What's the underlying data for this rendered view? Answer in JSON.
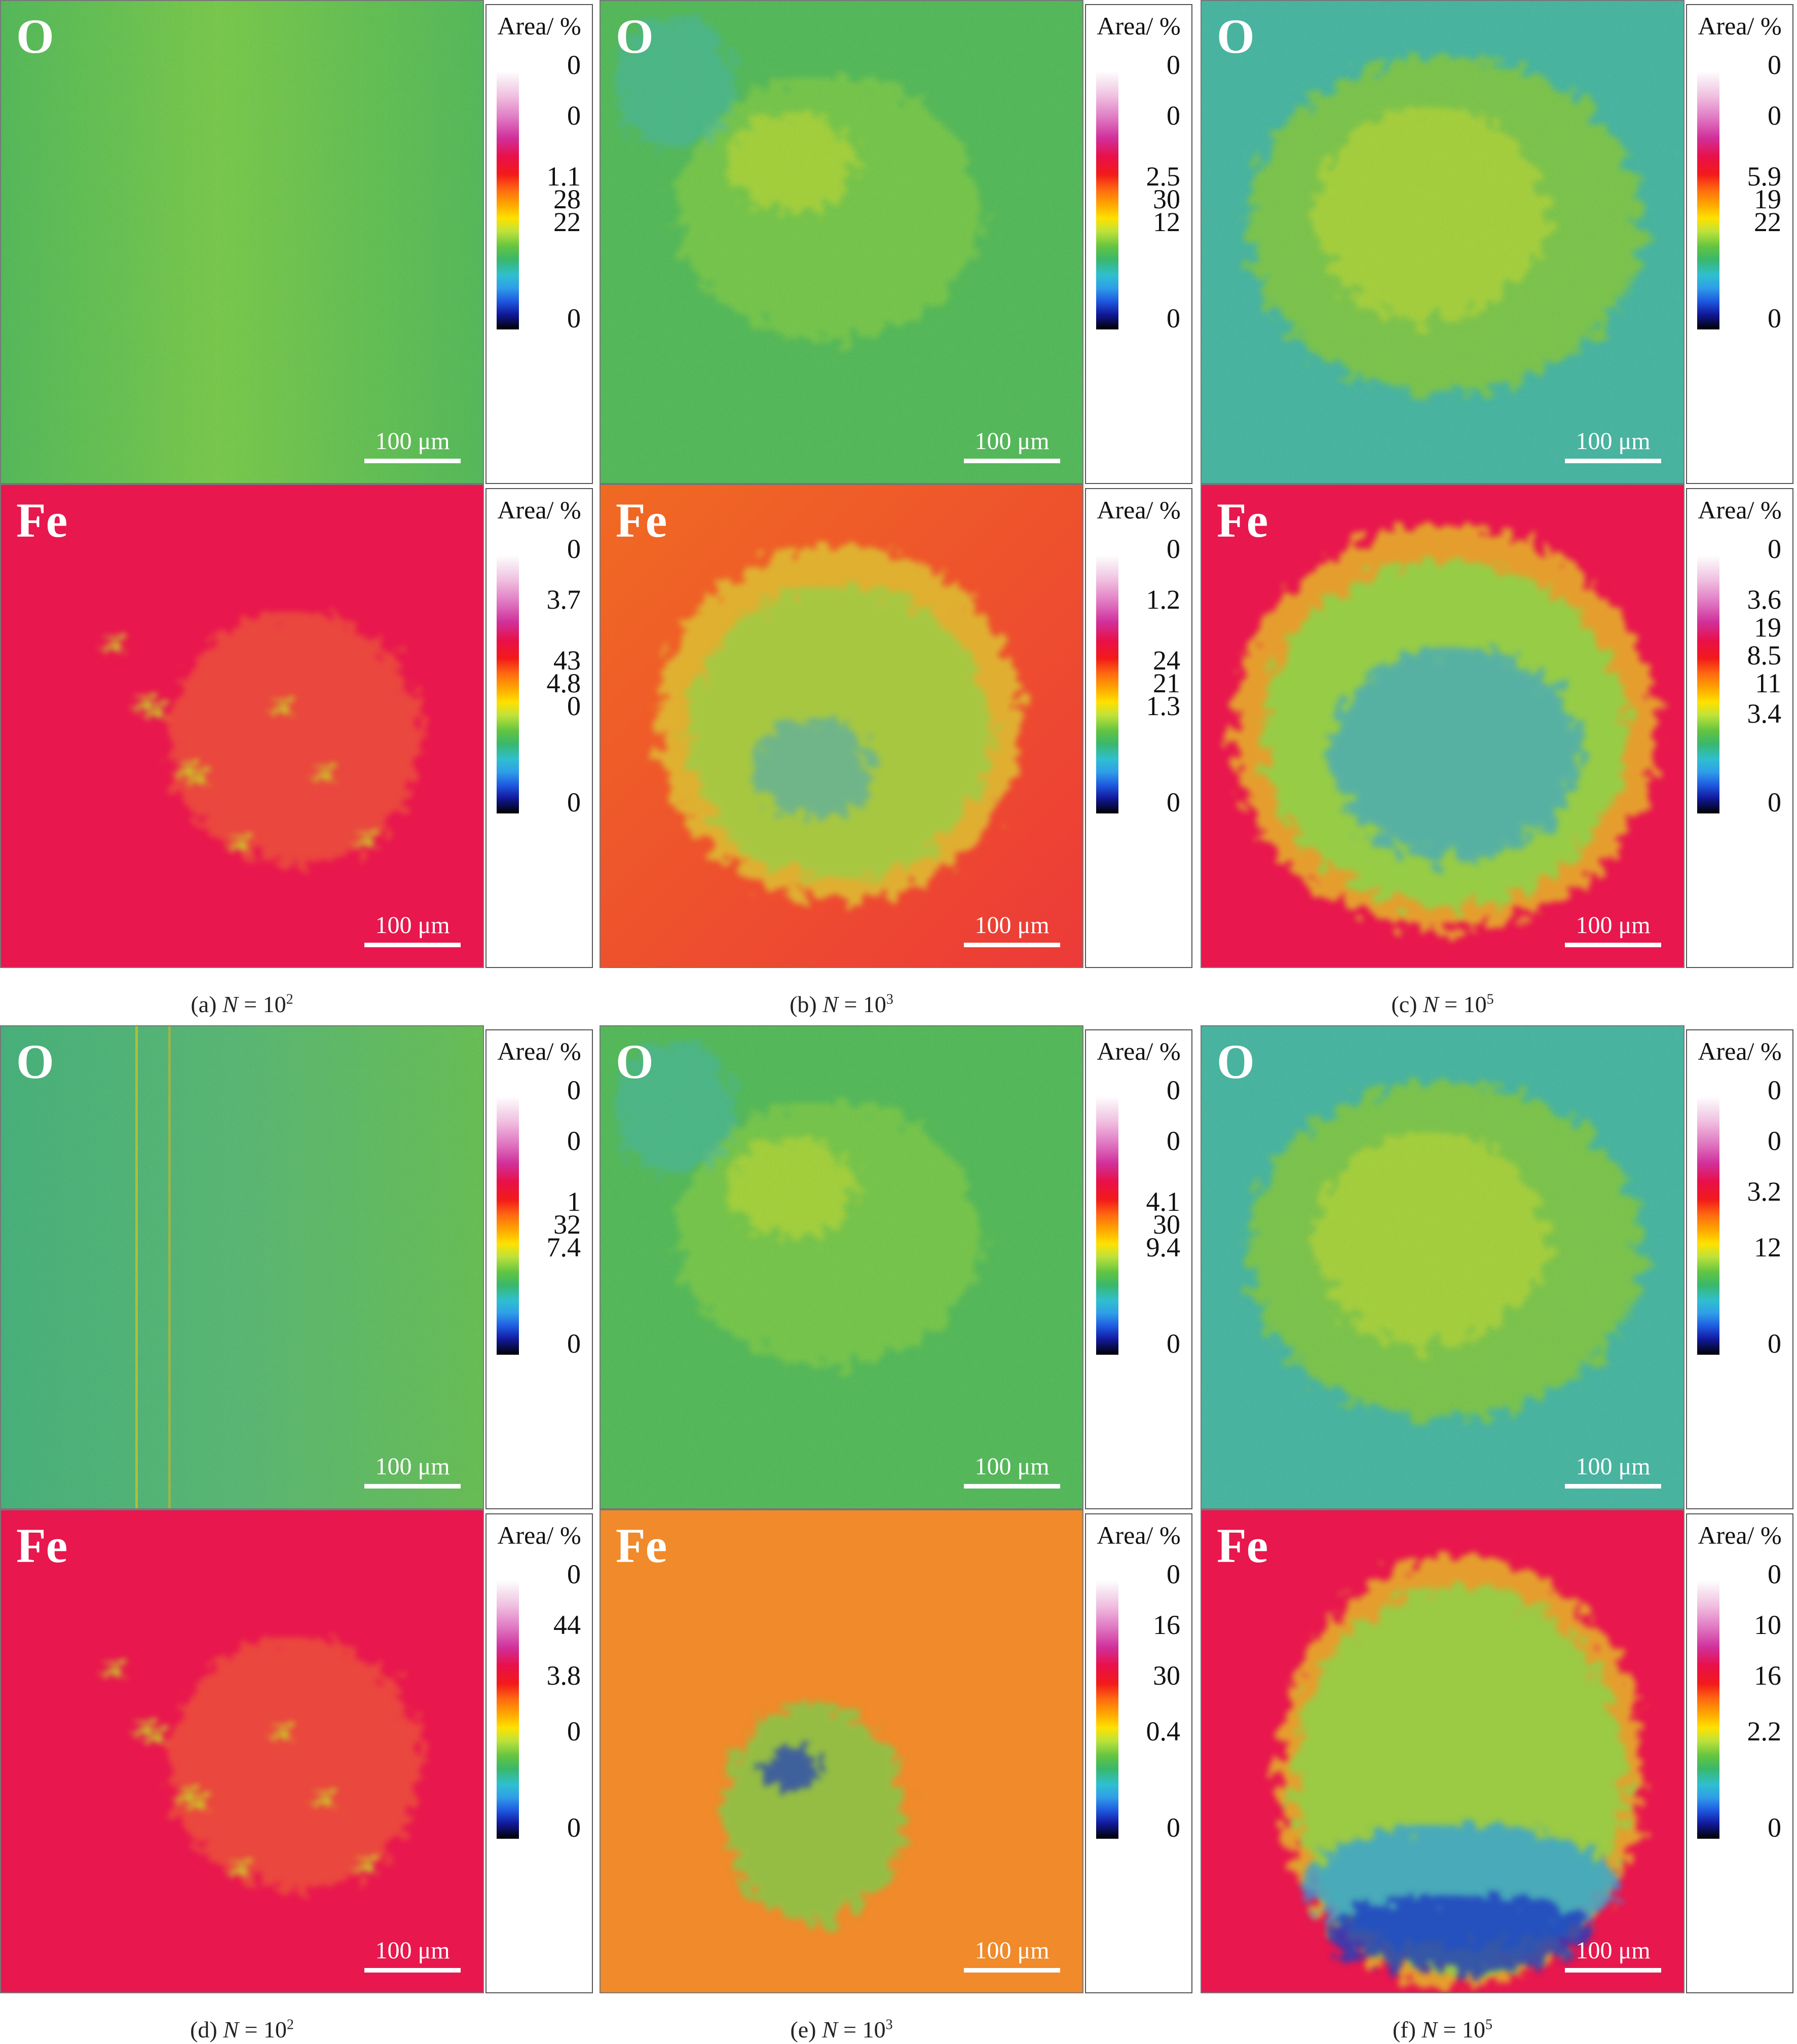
{
  "legend_title": "Area/ %",
  "scale_label": "100 μm",
  "colors": {
    "oxygen_base": "#55b85a",
    "oxygen_high": "#c8d830",
    "oxygen_low": "#3fb3d8",
    "iron_base": "#e8174e",
    "iron_orange": "#f0a020",
    "iron_mid": "#8fd24a",
    "iron_low": "#2da0e0",
    "iron_deep": "#1a3ac0"
  },
  "groups": [
    {
      "caption": {
        "prefix": "(a) ",
        "var": "N",
        "eq": " = 10",
        "exp": "2"
      },
      "maps": [
        {
          "element": "O",
          "legend": [
            "0",
            "0",
            "1.1",
            "28",
            "22",
            "0"
          ],
          "style": "o-flat"
        },
        {
          "element": "Fe",
          "legend": [
            "0",
            "3.7",
            "43",
            "4.8",
            "0",
            "0"
          ],
          "style": "fe-sparse"
        }
      ]
    },
    {
      "caption": {
        "prefix": "(b) ",
        "var": "N",
        "eq": " = 10",
        "exp": "3"
      },
      "maps": [
        {
          "element": "O",
          "legend": [
            "0",
            "0",
            "2.5",
            "30",
            "12",
            "0"
          ],
          "style": "o-faint"
        },
        {
          "element": "Fe",
          "legend": [
            "0",
            "1.2",
            "24",
            "21",
            "1.3",
            "0"
          ],
          "style": "fe-medium"
        }
      ]
    },
    {
      "caption": {
        "prefix": "(c) ",
        "var": "N",
        "eq": " = 10",
        "exp": "5"
      },
      "maps": [
        {
          "element": "O",
          "legend": [
            "0",
            "0",
            "5.9",
            "19",
            "22",
            "0"
          ],
          "style": "o-strong"
        },
        {
          "element": "Fe",
          "legend": [
            "0",
            "3.6",
            "19",
            "8.5",
            "11",
            "3.4",
            "0"
          ],
          "style": "fe-heavy"
        }
      ]
    },
    {
      "caption": {
        "prefix": "(d) ",
        "var": "N",
        "eq": " = 10",
        "exp": "2"
      },
      "maps": [
        {
          "element": "O",
          "legend": [
            "0",
            "0",
            "1",
            "32",
            "7.4",
            "0"
          ],
          "style": "o-lines"
        },
        {
          "element": "Fe",
          "legend": [
            "0",
            "44",
            "3.8",
            "0",
            "0"
          ],
          "style": "fe-sparse2"
        }
      ]
    },
    {
      "caption": {
        "prefix": "(e) ",
        "var": "N",
        "eq": " = 10",
        "exp": "3"
      },
      "maps": [
        {
          "element": "O",
          "legend": [
            "0",
            "0",
            "4.1",
            "30",
            "9.4",
            "0"
          ],
          "style": "o-faint2"
        },
        {
          "element": "Fe",
          "legend": [
            "0",
            "16",
            "30",
            "0.4",
            "0"
          ],
          "style": "fe-orange"
        }
      ]
    },
    {
      "caption": {
        "prefix": "(f) ",
        "var": "N",
        "eq": " = 10",
        "exp": "5"
      },
      "maps": [
        {
          "element": "O",
          "legend": [
            "0",
            "0",
            "3.2",
            "12",
            "0"
          ],
          "style": "o-strong2"
        },
        {
          "element": "Fe",
          "legend": [
            "0",
            "10",
            "16",
            "2.2",
            "0"
          ],
          "style": "fe-heavy2"
        }
      ]
    }
  ]
}
